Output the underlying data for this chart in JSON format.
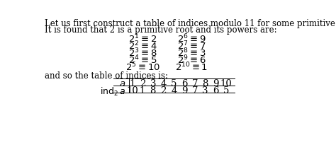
{
  "bg_color": "#ffffff",
  "text_color": "#000000",
  "intro_line1": "Let us first construct a table of indices modulo 11 for some primitive root.",
  "intro_line2": "It is found that 2 is a primitive root and its powers are:",
  "powers_left": [
    "$2^1 \\equiv 2$",
    "$2^2 \\equiv 4$",
    "$2^3 \\equiv 8$",
    "$2^4 \\equiv 5$",
    "$2^5 \\equiv 10$"
  ],
  "powers_right": [
    "$2^6 \\equiv 9$",
    "$2^7 \\equiv 7$",
    "$2^8 \\equiv 3$",
    "$2^9 \\equiv 6$",
    "$2^{10} \\equiv 1$"
  ],
  "table_text": "and so the table of indices is:",
  "table_a_values": [
    "1",
    "2",
    "3",
    "4",
    "5",
    "6",
    "7",
    "8",
    "9",
    "10"
  ],
  "table_ind_values": [
    "10",
    "1",
    "8",
    "2",
    "4",
    "9",
    "7",
    "3",
    "6",
    "5"
  ],
  "font_size_body": 8.5,
  "font_size_math": 9.5
}
